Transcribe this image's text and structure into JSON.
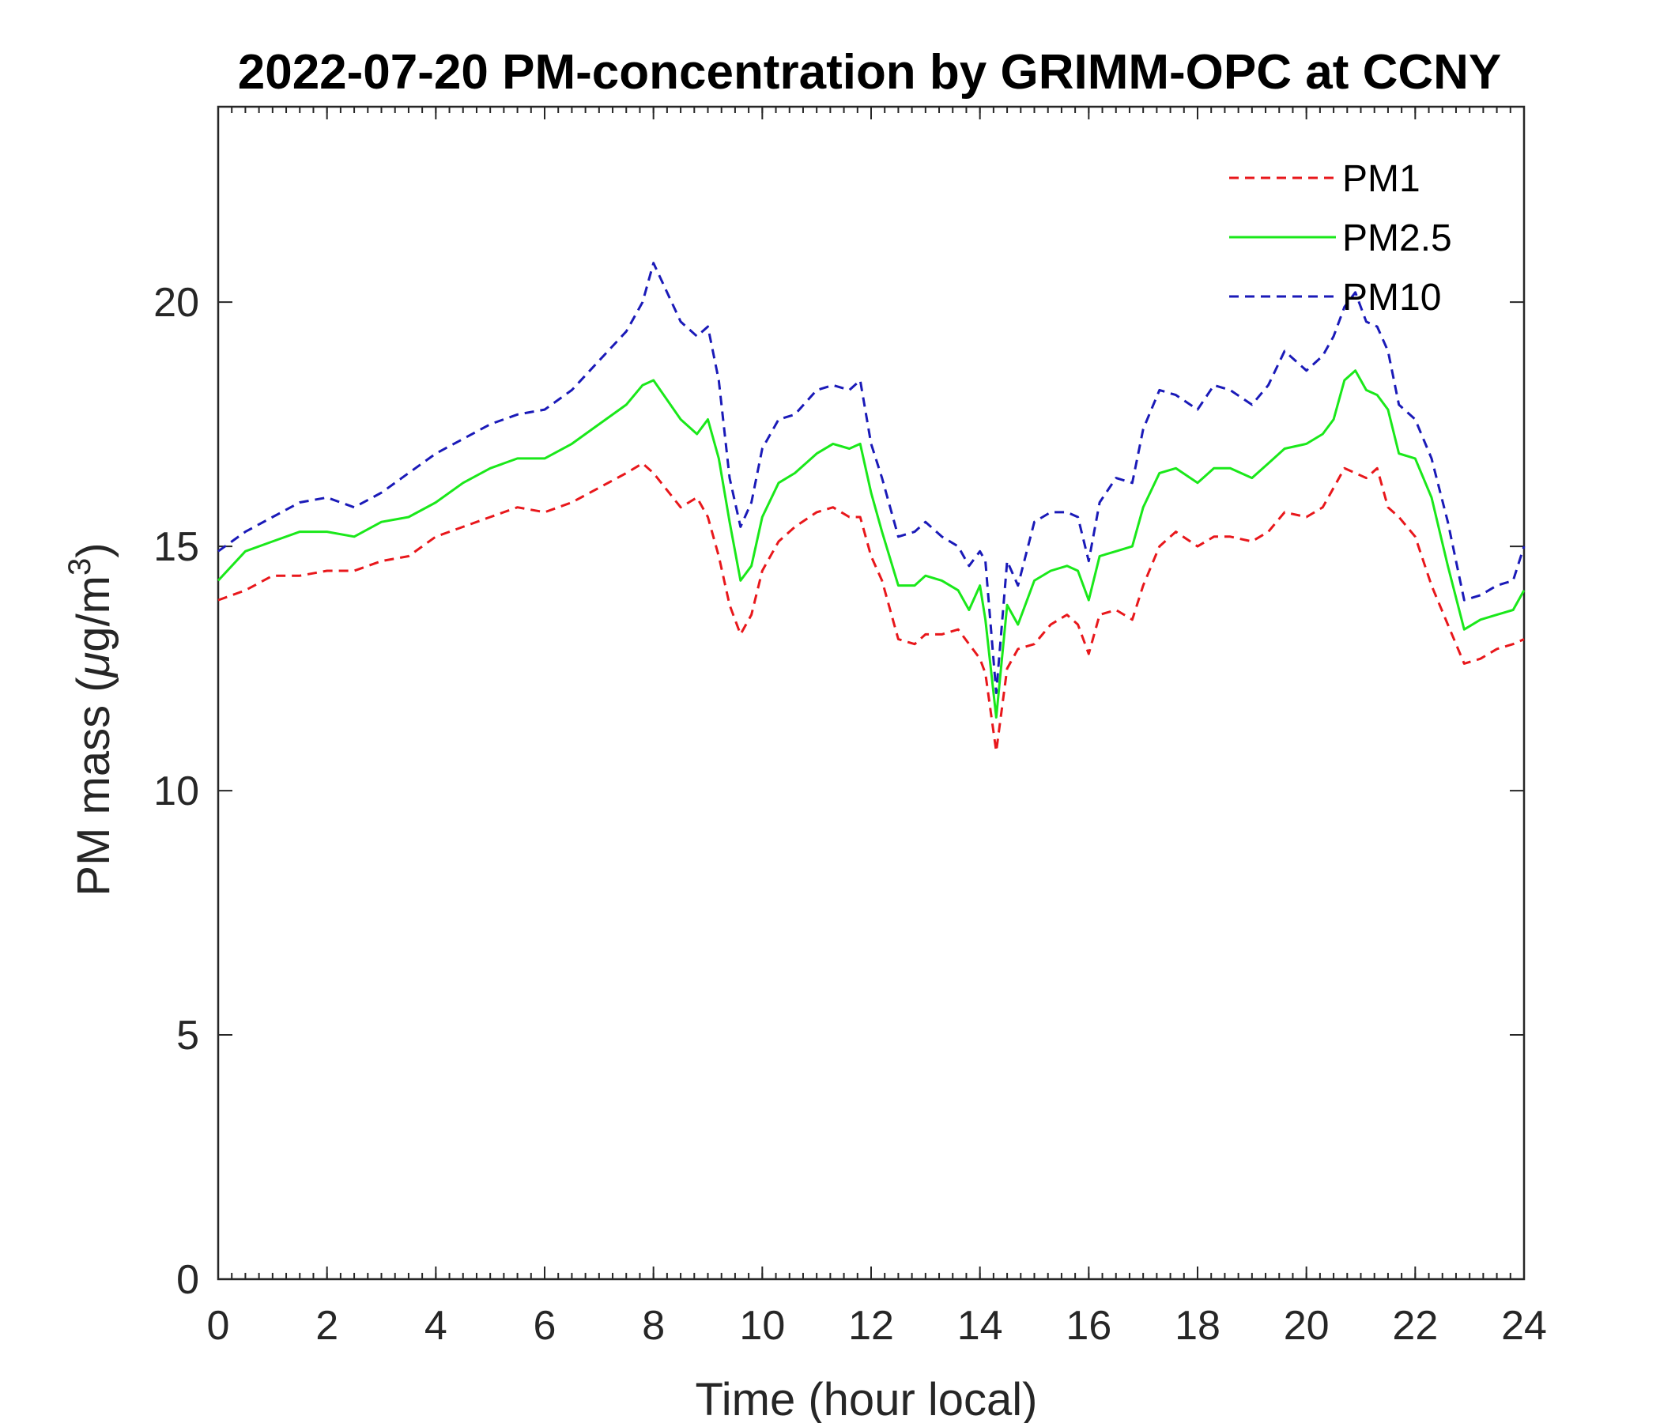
{
  "chart_data": {
    "type": "line",
    "title": "2022-07-20 PM-concentration by GRIMM-OPC at CCNY",
    "xlabel": "Time (hour local)",
    "ylabel": {
      "prefix": "PM mass (",
      "mu": "μ",
      "unit": "g/m",
      "sup": "3",
      "suffix": ")"
    },
    "xlim": [
      0,
      24
    ],
    "ylim": [
      0,
      24
    ],
    "xticks": [
      0,
      2,
      4,
      6,
      8,
      10,
      12,
      14,
      16,
      18,
      20,
      22,
      24
    ],
    "yticks": [
      0,
      5,
      10,
      15,
      20
    ],
    "x_minor_step": 0.25,
    "grid": false,
    "legend_position": "top-right",
    "x": [
      0,
      0.5,
      1,
      1.5,
      2,
      2.5,
      3,
      3.5,
      4,
      4.5,
      5,
      5.5,
      6,
      6.5,
      7,
      7.5,
      7.8,
      8,
      8.5,
      8.8,
      9,
      9.2,
      9.4,
      9.6,
      9.8,
      10,
      10.3,
      10.6,
      11,
      11.3,
      11.6,
      11.8,
      12,
      12.2,
      12.5,
      12.8,
      13,
      13.3,
      13.6,
      13.8,
      14,
      14.1,
      14.3,
      14.5,
      14.7,
      15,
      15.3,
      15.6,
      15.8,
      16,
      16.2,
      16.5,
      16.8,
      17,
      17.3,
      17.6,
      18,
      18.3,
      18.6,
      19,
      19.3,
      19.6,
      20,
      20.3,
      20.5,
      20.7,
      20.9,
      21.1,
      21.3,
      21.5,
      21.7,
      22,
      22.3,
      22.6,
      22.9,
      23.2,
      23.5,
      23.8,
      24
    ],
    "series": [
      {
        "name": "PM1",
        "color": "#e8171b",
        "dash": "dashed",
        "values": [
          13.9,
          14.1,
          14.4,
          14.4,
          14.5,
          14.5,
          14.7,
          14.8,
          15.2,
          15.4,
          15.6,
          15.8,
          15.7,
          15.9,
          16.2,
          16.5,
          16.7,
          16.5,
          15.8,
          16.0,
          15.6,
          14.8,
          13.8,
          13.2,
          13.6,
          14.5,
          15.1,
          15.4,
          15.7,
          15.8,
          15.6,
          15.6,
          14.8,
          14.3,
          13.1,
          13.0,
          13.2,
          13.2,
          13.3,
          13.0,
          12.7,
          12.4,
          10.8,
          12.5,
          12.9,
          13.0,
          13.4,
          13.6,
          13.4,
          12.8,
          13.6,
          13.7,
          13.5,
          14.2,
          15.0,
          15.3,
          15.0,
          15.2,
          15.2,
          15.1,
          15.3,
          15.7,
          15.6,
          15.8,
          16.2,
          16.6,
          16.5,
          16.4,
          16.6,
          15.8,
          15.6,
          15.2,
          14.2,
          13.4,
          12.6,
          12.7,
          12.9,
          13.0,
          13.1
        ]
      },
      {
        "name": "PM2.5",
        "color": "#1ae81a",
        "dash": "solid",
        "values": [
          14.3,
          14.9,
          15.1,
          15.3,
          15.3,
          15.2,
          15.5,
          15.6,
          15.9,
          16.3,
          16.6,
          16.8,
          16.8,
          17.1,
          17.5,
          17.9,
          18.3,
          18.4,
          17.6,
          17.3,
          17.6,
          16.8,
          15.5,
          14.3,
          14.6,
          15.6,
          16.3,
          16.5,
          16.9,
          17.1,
          17.0,
          17.1,
          16.1,
          15.3,
          14.2,
          14.2,
          14.4,
          14.3,
          14.1,
          13.7,
          14.2,
          13.5,
          11.5,
          13.8,
          13.4,
          14.3,
          14.5,
          14.6,
          14.5,
          13.9,
          14.8,
          14.9,
          15.0,
          15.8,
          16.5,
          16.6,
          16.3,
          16.6,
          16.6,
          16.4,
          16.7,
          17.0,
          17.1,
          17.3,
          17.6,
          18.4,
          18.6,
          18.2,
          18.1,
          17.8,
          16.9,
          16.8,
          16.0,
          14.6,
          13.3,
          13.5,
          13.6,
          13.7,
          14.1
        ]
      },
      {
        "name": "PM10",
        "color": "#1a1ab8",
        "dash": "dashed",
        "values": [
          14.9,
          15.3,
          15.6,
          15.9,
          16.0,
          15.8,
          16.1,
          16.5,
          16.9,
          17.2,
          17.5,
          17.7,
          17.8,
          18.2,
          18.8,
          19.4,
          20.0,
          20.8,
          19.6,
          19.3,
          19.5,
          18.4,
          16.4,
          15.4,
          15.9,
          17.0,
          17.6,
          17.7,
          18.2,
          18.3,
          18.2,
          18.4,
          17.1,
          16.4,
          15.2,
          15.3,
          15.5,
          15.2,
          15.0,
          14.6,
          14.9,
          14.7,
          12.0,
          14.7,
          14.2,
          15.5,
          15.7,
          15.7,
          15.6,
          14.7,
          15.9,
          16.4,
          16.3,
          17.4,
          18.2,
          18.1,
          17.8,
          18.3,
          18.2,
          17.9,
          18.3,
          19.0,
          18.6,
          18.9,
          19.3,
          19.9,
          20.2,
          19.6,
          19.5,
          19.0,
          17.9,
          17.6,
          16.8,
          15.5,
          13.9,
          14.0,
          14.2,
          14.3,
          15.0
        ]
      }
    ]
  }
}
